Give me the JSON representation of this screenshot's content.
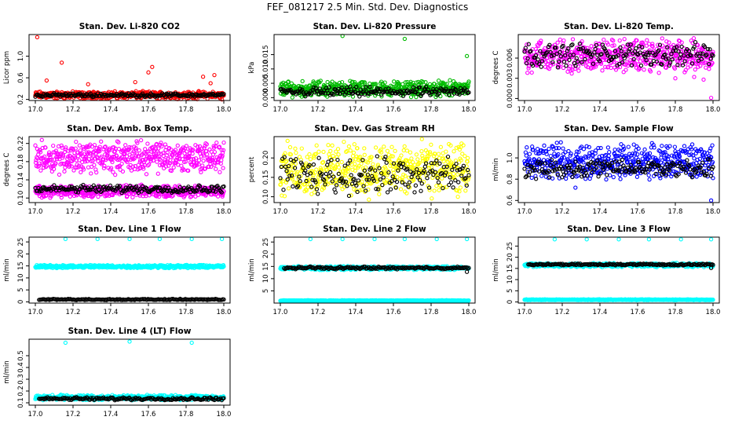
{
  "figure": {
    "title": "FEF_081217  2.5 Min. Std. Dev. Diagnostics"
  },
  "chart_data": [
    {
      "type": "scatter",
      "title": "Stan. Dev. Li-820 CO2",
      "xlabel": "",
      "ylabel": "Licor ppm",
      "xlim": [
        17.0,
        18.0
      ],
      "ylim": [
        0.18,
        1.4
      ],
      "xticks": [
        "17.0",
        "17.2",
        "17.4",
        "17.6",
        "17.8",
        "18.0"
      ],
      "yticks": [
        {
          "v": 0.2,
          "label": "0.2"
        },
        {
          "v": 0.6,
          "label": "0.6"
        },
        {
          "v": 1.0,
          "label": "1.0"
        }
      ],
      "grid": false,
      "series": [
        {
          "color": "#ff0000",
          "x": [
            17.0,
            18.0
          ],
          "range": [
            0.2,
            0.36
          ],
          "outliers": [
            [
              17.01,
              1.35
            ],
            [
              17.14,
              0.88
            ],
            [
              17.62,
              0.8
            ],
            [
              17.6,
              0.7
            ],
            [
              17.89,
              0.62
            ],
            [
              17.95,
              0.65
            ],
            [
              17.93,
              0.5
            ],
            [
              17.28,
              0.48
            ],
            [
              17.06,
              0.55
            ],
            [
              17.53,
              0.52
            ],
            [
              17.99,
              0.2
            ],
            [
              17.31,
              0.22
            ]
          ]
        },
        {
          "color": "#000000",
          "x": [
            17.0,
            18.0
          ],
          "range": [
            0.24,
            0.32
          ]
        }
      ]
    },
    {
      "type": "scatter",
      "title": "Stan. Dev. Li-820 Pressure",
      "xlabel": "",
      "ylabel": "kPa",
      "xlim": [
        17.0,
        18.0
      ],
      "ylim": [
        -0.001,
        0.022
      ],
      "xticks": [
        "17.0",
        "17.2",
        "17.4",
        "17.6",
        "17.8",
        "18.0"
      ],
      "yticks": [
        {
          "v": 0.0,
          "label": "0.000"
        },
        {
          "v": 0.005,
          "label": "0.005"
        },
        {
          "v": 0.01,
          "label": "0.010"
        },
        {
          "v": 0.015,
          "label": "0.015"
        }
      ],
      "grid": false,
      "series": [
        {
          "color": "#00bb00",
          "x": [
            17.0,
            18.0
          ],
          "range": [
            0.0,
            0.0062
          ],
          "outliers": [
            [
              17.33,
              0.0215
            ],
            [
              17.66,
              0.0205
            ],
            [
              17.99,
              0.0145
            ]
          ]
        },
        {
          "color": "#000000",
          "x": [
            17.0,
            18.0
          ],
          "range": [
            0.0,
            0.004
          ]
        }
      ]
    },
    {
      "type": "scatter",
      "title": "Stan. Dev. Li-820 Temp.",
      "xlabel": "",
      "ylabel": "degrees C",
      "xlim": [
        17.0,
        18.0
      ],
      "ylim": [
        -0.0003,
        0.0095
      ],
      "xticks": [
        "17.0",
        "17.2",
        "17.4",
        "17.6",
        "17.8",
        "18.0"
      ],
      "yticks": [
        {
          "v": 0.0,
          "label": "0.000"
        },
        {
          "v": 0.003,
          "label": "0.003"
        },
        {
          "v": 0.006,
          "label": "0.006"
        }
      ],
      "grid": false,
      "series": [
        {
          "color": "#ff00ff",
          "x": [
            17.0,
            18.0
          ],
          "range": [
            0.0035,
            0.0092
          ],
          "outliers": [
            [
              17.99,
              0.0001
            ],
            [
              17.8,
              0.003
            ],
            [
              17.9,
              0.0032
            ],
            [
              17.95,
              0.0028
            ]
          ]
        },
        {
          "color": "#000000",
          "x": [
            17.0,
            18.0
          ],
          "range": [
            0.0045,
            0.0085
          ]
        }
      ]
    },
    {
      "type": "scatter",
      "title": "Stan. Dev. Amb. Box Temp.",
      "xlabel": "",
      "ylabel": "degrees C",
      "xlim": [
        17.0,
        18.0
      ],
      "ylim": [
        0.09,
        0.235
      ],
      "xticks": [
        "17.0",
        "17.2",
        "17.4",
        "17.6",
        "17.8",
        "18.0"
      ],
      "yticks": [
        {
          "v": 0.1,
          "label": "0.10"
        },
        {
          "v": 0.14,
          "label": "0.14"
        },
        {
          "v": 0.18,
          "label": "0.18"
        },
        {
          "v": 0.22,
          "label": "0.22"
        }
      ],
      "grid": false,
      "series": [
        {
          "color": "#ff00ff",
          "x": [
            17.0,
            18.0
          ],
          "range": [
            0.15,
            0.23
          ]
        },
        {
          "color": "#ff00ff",
          "x": [
            17.0,
            18.0
          ],
          "range": [
            0.1,
            0.13
          ]
        },
        {
          "color": "#000000",
          "x": [
            17.0,
            18.0
          ],
          "range": [
            0.11,
            0.13
          ]
        }
      ]
    },
    {
      "type": "scatter",
      "title": "Stan. Dev. Gas Stream RH",
      "xlabel": "",
      "ylabel": "percent",
      "xlim": [
        17.0,
        18.0
      ],
      "ylim": [
        0.085,
        0.255
      ],
      "xticks": [
        "17.0",
        "17.2",
        "17.4",
        "17.6",
        "17.8",
        "18.0"
      ],
      "yticks": [
        {
          "v": 0.1,
          "label": "0.10"
        },
        {
          "v": 0.15,
          "label": "0.15"
        },
        {
          "v": 0.2,
          "label": "0.20"
        }
      ],
      "grid": false,
      "series": [
        {
          "color": "#ffff00",
          "x": [
            17.0,
            18.0
          ],
          "range": [
            0.09,
            0.25
          ]
        },
        {
          "color": "#000000",
          "x": [
            17.0,
            18.0
          ],
          "range": [
            0.1,
            0.21
          ]
        }
      ]
    },
    {
      "type": "scatter",
      "title": "Stan. Dev. Sample Flow",
      "xlabel": "",
      "ylabel": "ml/min",
      "xlim": [
        17.0,
        18.0
      ],
      "ylim": [
        0.58,
        1.2
      ],
      "xticks": [
        "17.0",
        "17.2",
        "17.4",
        "17.6",
        "17.8",
        "18.0"
      ],
      "yticks": [
        {
          "v": 0.6,
          "label": "0.6"
        },
        {
          "v": 0.8,
          "label": "0.8"
        },
        {
          "v": 1.0,
          "label": "1.0"
        }
      ],
      "grid": false,
      "series": [
        {
          "color": "#0000ff",
          "x": [
            17.0,
            18.0
          ],
          "range": [
            0.78,
            1.15
          ],
          "outliers": [
            [
              17.99,
              0.6
            ],
            [
              17.27,
              0.72
            ]
          ]
        },
        {
          "color": "#000000",
          "x": [
            17.0,
            18.0
          ],
          "range": [
            0.8,
            1.0
          ]
        }
      ]
    },
    {
      "type": "scatter",
      "title": "Stan. Dev. Line 1 Flow",
      "xlabel": "",
      "ylabel": "ml/min",
      "xlim": [
        17.0,
        18.0
      ],
      "ylim": [
        -0.5,
        27
      ],
      "xticks": [
        "17.0",
        "17.2",
        "17.4",
        "17.6",
        "17.8",
        "18.0"
      ],
      "yticks": [
        {
          "v": 0,
          "label": "0"
        },
        {
          "v": 5,
          "label": "5"
        },
        {
          "v": 10,
          "label": "10"
        },
        {
          "v": 15,
          "label": "15"
        },
        {
          "v": 20,
          "label": "20"
        },
        {
          "v": 25,
          "label": "25"
        }
      ],
      "grid": false,
      "series": [
        {
          "color": "#00ffff",
          "x": [
            17.0,
            18.0
          ],
          "range": [
            14.0,
            15.5
          ],
          "outliers": [
            [
              17.16,
              26.2
            ],
            [
              17.33,
              26.2
            ],
            [
              17.5,
              26.2
            ],
            [
              17.66,
              26.2
            ],
            [
              17.83,
              26.2
            ],
            [
              17.99,
              26.2
            ]
          ]
        },
        {
          "color": "#000000",
          "x": [
            17.02,
            18.0
          ],
          "range": [
            0.7,
            1.3
          ]
        }
      ]
    },
    {
      "type": "scatter",
      "title": "Stan. Dev. Line 2 Flow",
      "xlabel": "",
      "ylabel": "ml/min",
      "xlim": [
        17.0,
        18.0
      ],
      "ylim": [
        0.0,
        27
      ],
      "xticks": [
        "17.0",
        "17.2",
        "17.4",
        "17.6",
        "17.8",
        "18.0"
      ],
      "yticks": [
        {
          "v": 5,
          "label": "5"
        },
        {
          "v": 10,
          "label": "10"
        },
        {
          "v": 15,
          "label": "15"
        },
        {
          "v": 20,
          "label": "20"
        },
        {
          "v": 25,
          "label": "25"
        }
      ],
      "grid": false,
      "series": [
        {
          "color": "#00ffff",
          "x": [
            17.0,
            18.0
          ],
          "range": [
            0.8,
            1.2
          ],
          "outliers": [
            [
              17.16,
              26.2
            ],
            [
              17.33,
              26.2
            ],
            [
              17.5,
              26.2
            ],
            [
              17.66,
              26.2
            ],
            [
              17.83,
              26.2
            ],
            [
              17.99,
              26.2
            ]
          ]
        },
        {
          "color": "#00ffff",
          "x": [
            17.0,
            18.0
          ],
          "range": [
            13.5,
            15.2
          ]
        },
        {
          "color": "#000000",
          "x": [
            17.02,
            18.0
          ],
          "range": [
            13.8,
            15.0
          ],
          "outliers": [
            [
              17.99,
              12.8
            ]
          ]
        }
      ]
    },
    {
      "type": "scatter",
      "title": "Stan. Dev. Line 3 Flow",
      "xlabel": "",
      "ylabel": "ml/min",
      "xlim": [
        17.0,
        18.0
      ],
      "ylim": [
        -0.5,
        29
      ],
      "xticks": [
        "17.0",
        "17.2",
        "17.4",
        "17.6",
        "17.8",
        "18.0"
      ],
      "yticks": [
        {
          "v": 0,
          "label": "0"
        },
        {
          "v": 5,
          "label": "5"
        },
        {
          "v": 10,
          "label": "10"
        },
        {
          "v": 15,
          "label": "15"
        },
        {
          "v": 20,
          "label": "20"
        },
        {
          "v": 25,
          "label": "25"
        }
      ],
      "grid": false,
      "series": [
        {
          "color": "#00ffff",
          "x": [
            17.0,
            18.0
          ],
          "range": [
            0.8,
            1.2
          ],
          "outliers": [
            [
              17.16,
              28
            ],
            [
              17.33,
              28
            ],
            [
              17.5,
              28
            ],
            [
              17.66,
              28
            ],
            [
              17.83,
              28
            ],
            [
              17.99,
              28
            ]
          ]
        },
        {
          "color": "#00ffff",
          "x": [
            17.0,
            18.0
          ],
          "range": [
            15.5,
            17.5
          ]
        },
        {
          "color": "#000000",
          "x": [
            17.02,
            18.0
          ],
          "range": [
            16.3,
            17.2
          ],
          "outliers": [
            [
              17.99,
              15.2
            ]
          ]
        }
      ]
    },
    {
      "type": "scatter",
      "title": "Stan. Dev. Line 4 (LT) Flow",
      "xlabel": "",
      "ylabel": "ml/min",
      "xlim": [
        17.0,
        18.0
      ],
      "ylim": [
        0.08,
        0.64
      ],
      "xticks": [
        "17.0",
        "17.2",
        "17.4",
        "17.6",
        "17.8",
        "18.0"
      ],
      "yticks": [
        {
          "v": 0.1,
          "label": "0.1"
        },
        {
          "v": 0.2,
          "label": "0.2"
        },
        {
          "v": 0.3,
          "label": "0.3"
        },
        {
          "v": 0.4,
          "label": "0.4"
        },
        {
          "v": 0.5,
          "label": "0.5"
        }
      ],
      "grid": false,
      "series": [
        {
          "color": "#00ffff",
          "x": [
            17.0,
            18.0
          ],
          "range": [
            0.12,
            0.17
          ],
          "outliers": [
            [
              17.16,
              0.61
            ],
            [
              17.5,
              0.62
            ],
            [
              17.83,
              0.61
            ]
          ]
        },
        {
          "color": "#000000",
          "x": [
            17.02,
            18.0
          ],
          "range": [
            0.12,
            0.15
          ]
        }
      ]
    }
  ]
}
